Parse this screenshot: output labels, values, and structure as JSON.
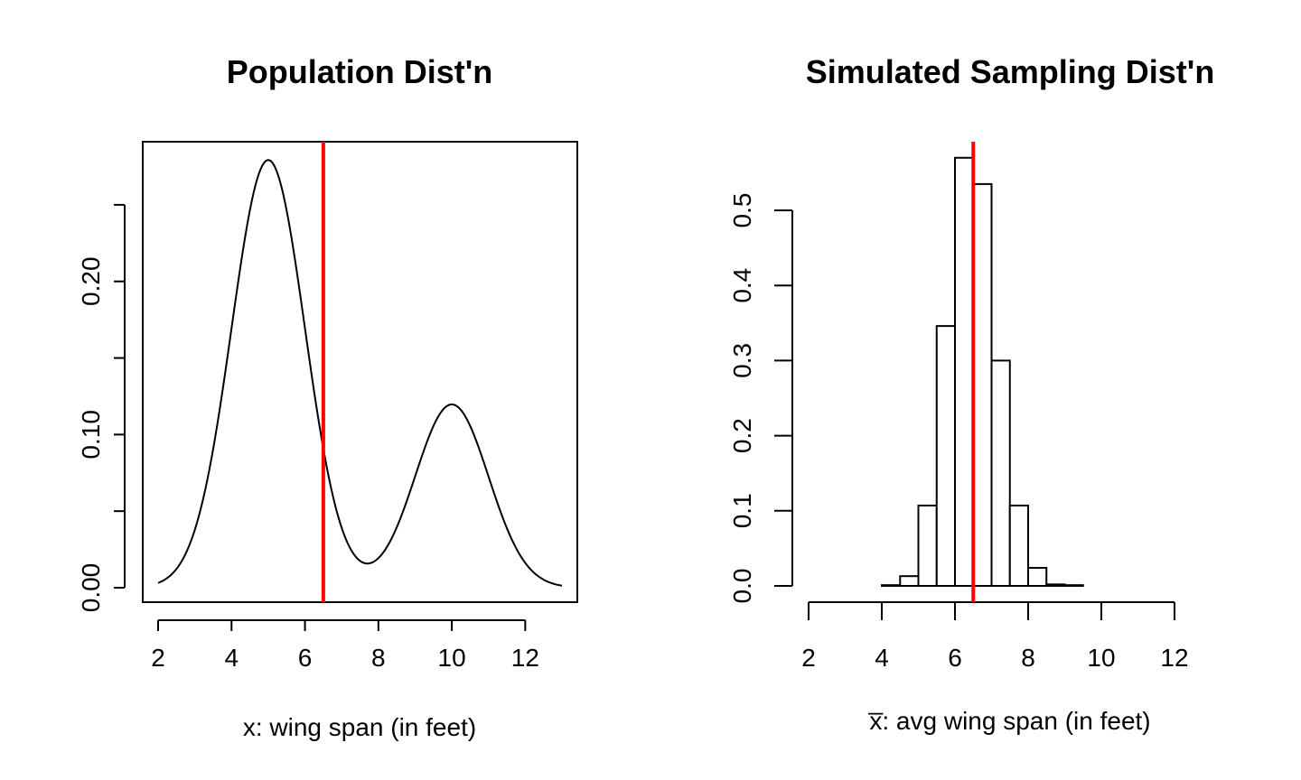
{
  "chart_data": [
    {
      "type": "line",
      "title": "Population Dist'n",
      "xlabel": "x: wing span (in feet)",
      "ylabel": "",
      "xlim": [
        2,
        13
      ],
      "ylim": [
        0,
        0.28
      ],
      "xticks": [
        2,
        4,
        6,
        8,
        10,
        12
      ],
      "yticks": [
        0.0,
        0.05,
        0.1,
        0.15,
        0.2,
        0.25
      ],
      "ytick_labels": [
        "0.00",
        "",
        "0.10",
        "",
        "0.20",
        ""
      ],
      "curve": {
        "description_type": "mixture-density",
        "components": [
          {
            "mean": 5,
            "sd": 1,
            "weight": 0.7
          },
          {
            "mean": 10,
            "sd": 1,
            "weight": 0.3
          }
        ]
      },
      "reference_line": {
        "x": 6.5,
        "color": "#ff0000"
      },
      "curve_color": "#000000",
      "grid": false
    },
    {
      "type": "bar",
      "title": "Simulated Sampling Dist'n",
      "xlabel": "x̅: avg wing span (in feet)",
      "ylabel": "",
      "xlim": [
        2,
        12
      ],
      "ylim": [
        0,
        0.57
      ],
      "xticks": [
        2,
        4,
        6,
        8,
        10,
        12
      ],
      "yticks": [
        0.0,
        0.1,
        0.2,
        0.3,
        0.4,
        0.5
      ],
      "ytick_labels": [
        "0.0",
        "0.1",
        "0.2",
        "0.3",
        "0.4",
        "0.5"
      ],
      "bin_width": 0.5,
      "bins": [
        {
          "x0": 4.0,
          "height": 0.001
        },
        {
          "x0": 4.5,
          "height": 0.013
        },
        {
          "x0": 5.0,
          "height": 0.107
        },
        {
          "x0": 5.5,
          "height": 0.346
        },
        {
          "x0": 6.0,
          "height": 0.57
        },
        {
          "x0": 6.5,
          "height": 0.535
        },
        {
          "x0": 7.0,
          "height": 0.3
        },
        {
          "x0": 7.5,
          "height": 0.107
        },
        {
          "x0": 8.0,
          "height": 0.024
        },
        {
          "x0": 8.5,
          "height": 0.002
        },
        {
          "x0": 9.0,
          "height": 0.001
        }
      ],
      "reference_line": {
        "x": 6.5,
        "color": "#ff0000"
      },
      "bar_fill": "#ffffff",
      "bar_stroke": "#000000",
      "grid": false
    }
  ]
}
